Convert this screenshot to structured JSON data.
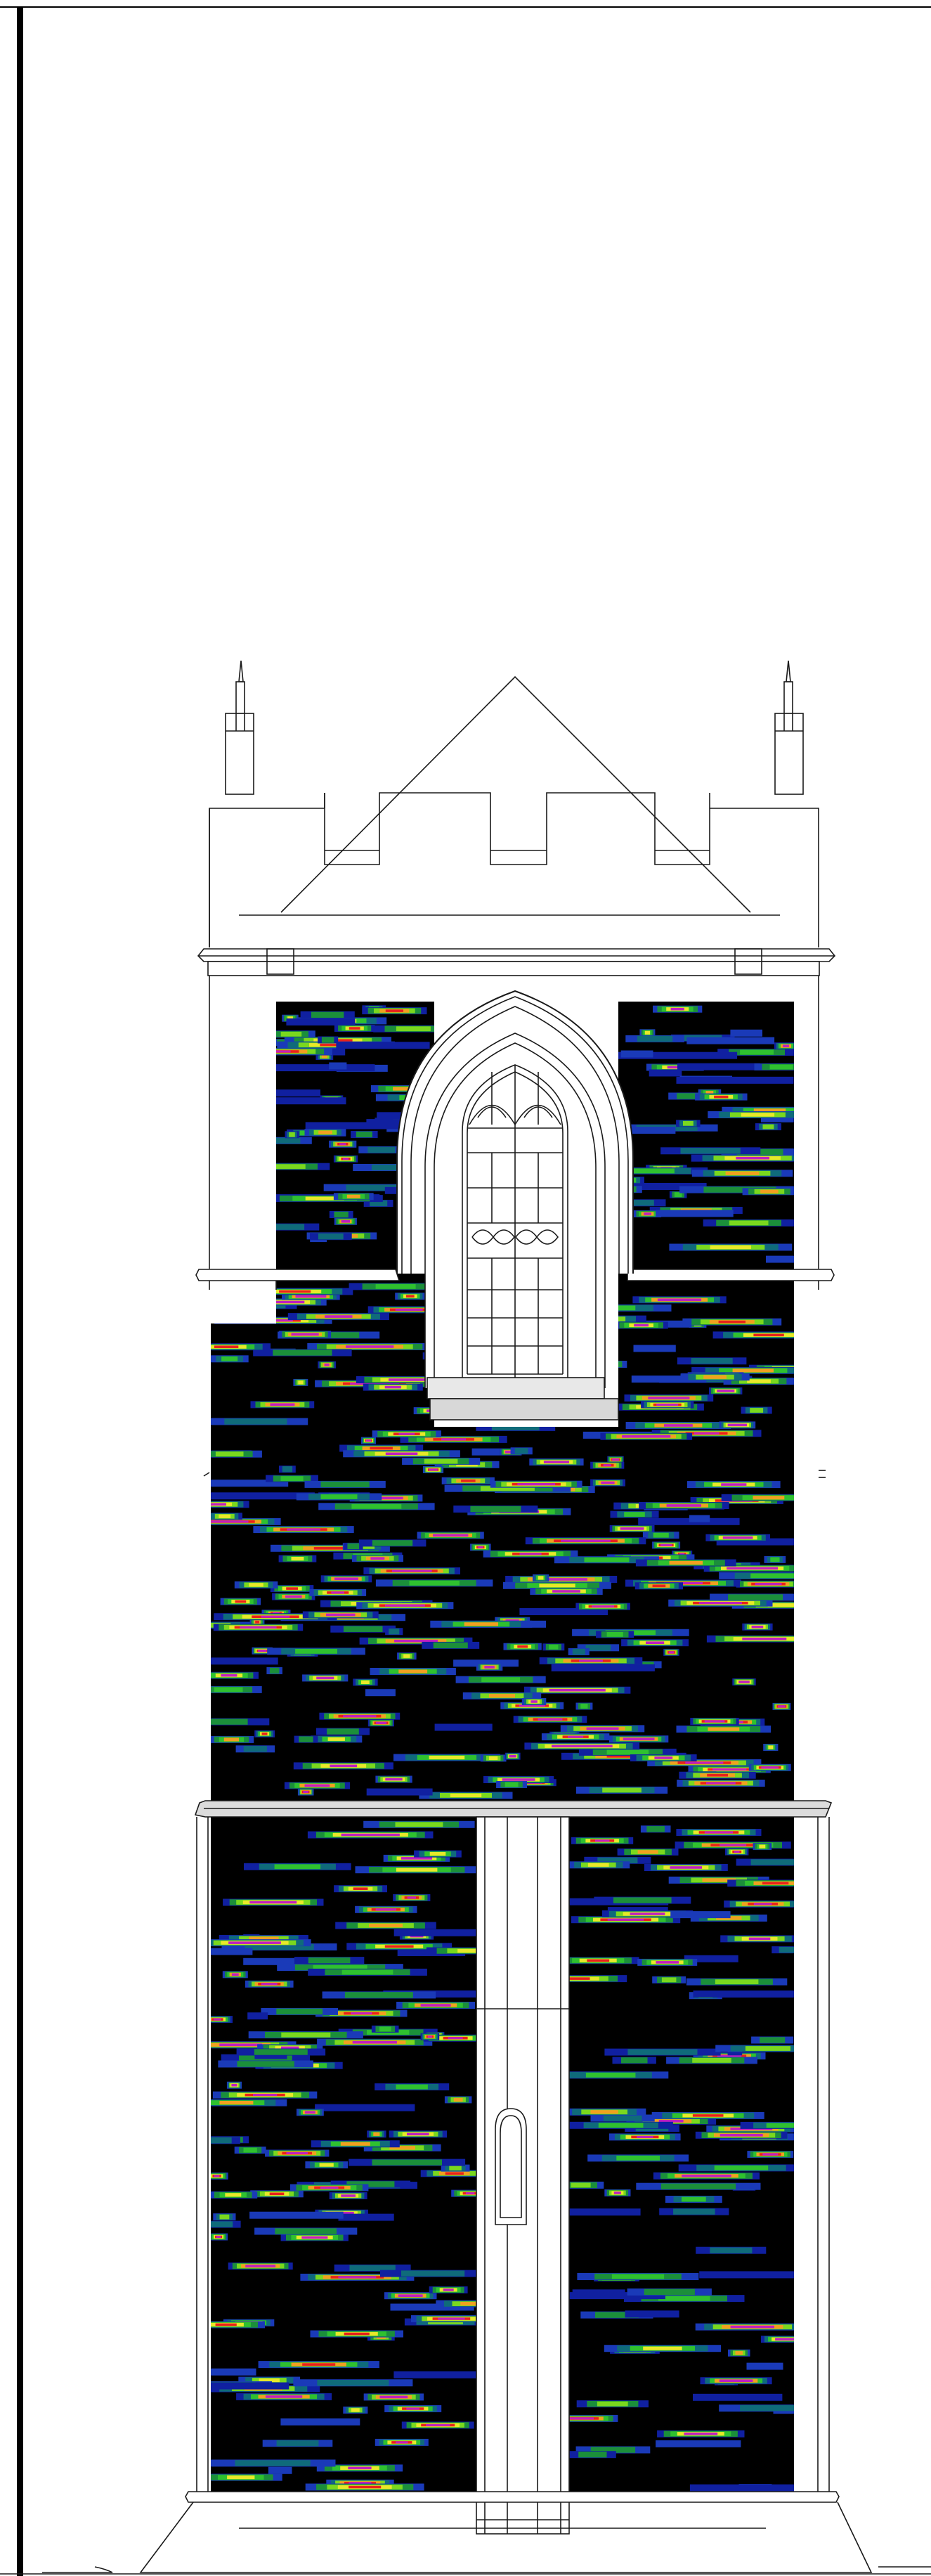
{
  "drawing": {
    "subject": "tower-elevation-with-thermal-overlay",
    "line_color": "#1a1a1a",
    "fill_color": "#ffffff",
    "ledge_fill": "#dddddd",
    "overlay_background": "#000000",
    "heat_colors": [
      "#1020a0",
      "#1a3ab8",
      "#0f6b7a",
      "#1b8f3a",
      "#2fc12f",
      "#7ad81e",
      "#e8e82a",
      "#f0a020",
      "#e8221c",
      "#c020c0"
    ]
  }
}
